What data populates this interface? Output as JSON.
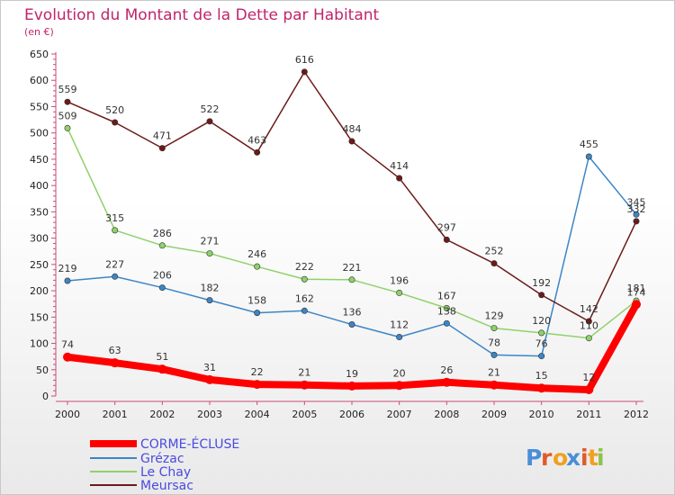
{
  "chart_data": {
    "type": "line",
    "title": "Evolution du Montant de la Dette par Habitant",
    "subtitle": "(en €)",
    "x": [
      "2000",
      "2001",
      "2002",
      "2003",
      "2004",
      "2005",
      "2006",
      "2007",
      "2008",
      "2009",
      "2010",
      "2011",
      "2012"
    ],
    "ylim": [
      0,
      650
    ],
    "yticks": [
      0,
      50,
      100,
      150,
      200,
      250,
      300,
      350,
      400,
      450,
      500,
      550,
      600,
      650
    ],
    "grid": false,
    "legend_position": "bottom-left",
    "series": [
      {
        "name": "CORME-ÉCLUSE",
        "color": "#ff0000",
        "values": [
          74,
          63,
          51,
          31,
          22,
          21,
          19,
          20,
          26,
          21,
          15,
          12,
          174
        ]
      },
      {
        "name": "Grézac",
        "color": "#3d85c6",
        "values": [
          219,
          227,
          206,
          182,
          158,
          162,
          136,
          112,
          138,
          78,
          76,
          455,
          345
        ]
      },
      {
        "name": "Le Chay",
        "color": "#8fd16b",
        "values": [
          509,
          315,
          286,
          271,
          246,
          222,
          221,
          196,
          167,
          129,
          120,
          110,
          181
        ]
      },
      {
        "name": "Meursac",
        "color": "#6b1a1a",
        "values": [
          559,
          520,
          471,
          522,
          463,
          616,
          484,
          414,
          297,
          252,
          192,
          142,
          332
        ]
      }
    ]
  },
  "logo": {
    "text": "Proxiti",
    "letter_colors": [
      "#4a8ed8",
      "#e05a2a",
      "#f0a020",
      "#4a8ed8",
      "#e05a2a",
      "#f0a020",
      "#8bc34a"
    ]
  }
}
